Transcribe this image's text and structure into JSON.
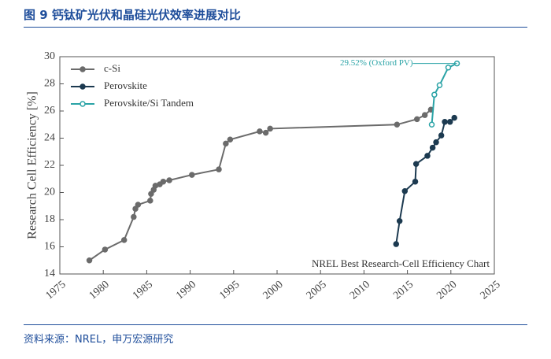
{
  "header": {
    "title": "图 9  钙钛矿光伏和晶硅光伏效率进展对比"
  },
  "footer": {
    "source": "资料来源：NREL，申万宏源研究"
  },
  "chart_data": {
    "type": "line",
    "y_label": "Research Cell Efficiency [%]",
    "annotations": [
      "29.52% (Oxford PV)",
      "NREL Best Research-Cell Efficiency Chart"
    ],
    "xlim": [
      1975,
      2025
    ],
    "xticks": [
      1975,
      1980,
      1985,
      1990,
      1995,
      2000,
      2005,
      2010,
      2015,
      2020,
      2025
    ],
    "ylim": [
      14,
      30
    ],
    "yticks": [
      14,
      16,
      18,
      20,
      22,
      24,
      26,
      28,
      30
    ],
    "legend": "top-left",
    "series": [
      {
        "name": "c-Si",
        "color": "#6b6b6b",
        "x": [
          1978.4,
          1980.2,
          1982.4,
          1983.5,
          1983.7,
          1984.0,
          1985.4,
          1985.5,
          1985.8,
          1986.0,
          1986.5,
          1986.9,
          1987.6,
          1990.2,
          1993.3,
          1994.1,
          1994.6,
          1998.0,
          1998.7,
          1999.2,
          2013.8,
          2016.1,
          2017.0,
          2017.7
        ],
        "values": [
          15.0,
          15.8,
          16.5,
          18.2,
          18.8,
          19.1,
          19.4,
          19.9,
          20.2,
          20.5,
          20.6,
          20.8,
          20.9,
          21.3,
          21.7,
          23.6,
          23.9,
          24.5,
          24.4,
          24.7,
          25.0,
          25.4,
          25.7,
          26.1
        ]
      },
      {
        "name": "Perovskite",
        "color": "#1c3a50",
        "x": [
          2013.7,
          2014.1,
          2014.7,
          2015.9,
          2016.0,
          2017.3,
          2017.9,
          2018.3,
          2018.9,
          2019.3,
          2019.9,
          2020.4
        ],
        "values": [
          16.2,
          17.9,
          20.1,
          20.8,
          22.1,
          22.7,
          23.3,
          23.7,
          24.2,
          25.2,
          25.2,
          25.5
        ]
      },
      {
        "name": "Perovskite/Si Tandem",
        "color": "#2aa3a6",
        "x": [
          2017.8,
          2018.1,
          2018.7,
          2019.7,
          2020.7
        ],
        "values": [
          25.0,
          27.2,
          27.9,
          29.2,
          29.5
        ]
      }
    ]
  }
}
